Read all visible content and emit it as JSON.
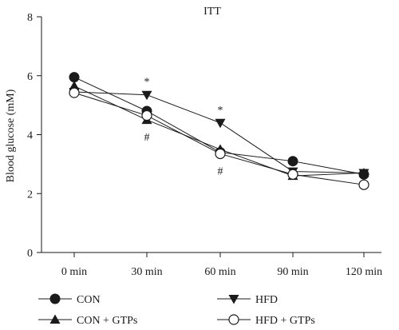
{
  "chart_data": {
    "type": "line",
    "title": "ITT",
    "xlabel": "",
    "ylabel": "Blood glucose (mM)",
    "categories": [
      "0 min",
      "30 min",
      "60 min",
      "90 min",
      "120 min"
    ],
    "ylim": [
      0,
      8
    ],
    "yticks": [
      0,
      2,
      4,
      6,
      8
    ],
    "grid": false,
    "legend_position": "bottom",
    "series": [
      {
        "name": "CON",
        "marker": "filled-circle",
        "values": [
          5.95,
          4.8,
          3.4,
          3.1,
          2.65
        ]
      },
      {
        "name": "HFD",
        "marker": "filled-triangle-down",
        "values": [
          5.45,
          5.35,
          4.4,
          2.75,
          2.7
        ]
      },
      {
        "name": "CON + GTPs",
        "marker": "filled-triangle-up",
        "values": [
          5.65,
          4.5,
          3.5,
          2.6,
          2.7
        ]
      },
      {
        "name": "HFD + GTPs",
        "marker": "open-circle",
        "values": [
          5.42,
          4.65,
          3.35,
          2.65,
          2.3
        ]
      }
    ],
    "annotations": [
      {
        "text": "*",
        "category": "30 min",
        "position": "above"
      },
      {
        "text": "#",
        "category": "30 min",
        "position": "below"
      },
      {
        "text": "*",
        "category": "60 min",
        "position": "above"
      },
      {
        "text": "#",
        "category": "60 min",
        "position": "below"
      }
    ]
  }
}
